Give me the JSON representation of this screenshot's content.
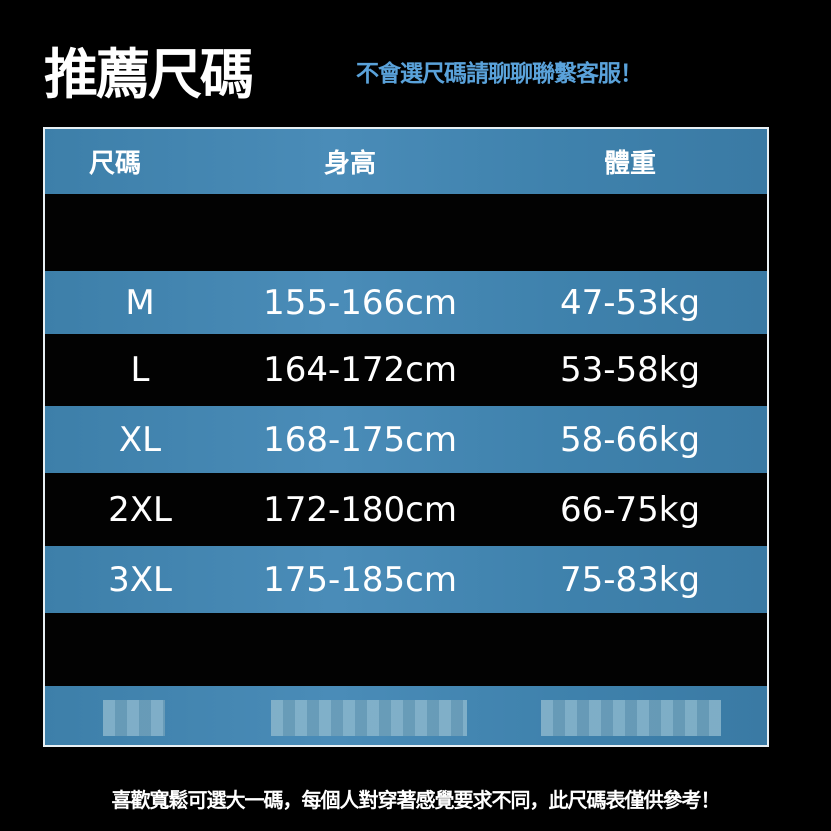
{
  "title": "推薦尺碼",
  "subtitle": "不會選尺碼請聊聊聯繫客服！",
  "table": {
    "headers": [
      "尺碼",
      "身高",
      "體重"
    ],
    "rows": [
      {
        "size": "M",
        "height": "155-166cm",
        "weight": "47-53kg"
      },
      {
        "size": "L",
        "height": "164-172cm",
        "weight": "53-58kg"
      },
      {
        "size": "XL",
        "height": "168-175cm",
        "weight": "58-66kg"
      },
      {
        "size": "2XL",
        "height": "172-180cm",
        "weight": "66-75kg"
      },
      {
        "size": "3XL",
        "height": "175-185cm",
        "weight": "75-83kg"
      }
    ]
  },
  "footer": "喜歡寬鬆可選大一碼，每個人對穿著感覺要求不同，此尺碼表僅供參考！",
  "colors": {
    "row_blue": "#4a8cb8",
    "row_black": "#020202",
    "subtitle": "#5aa2da"
  }
}
